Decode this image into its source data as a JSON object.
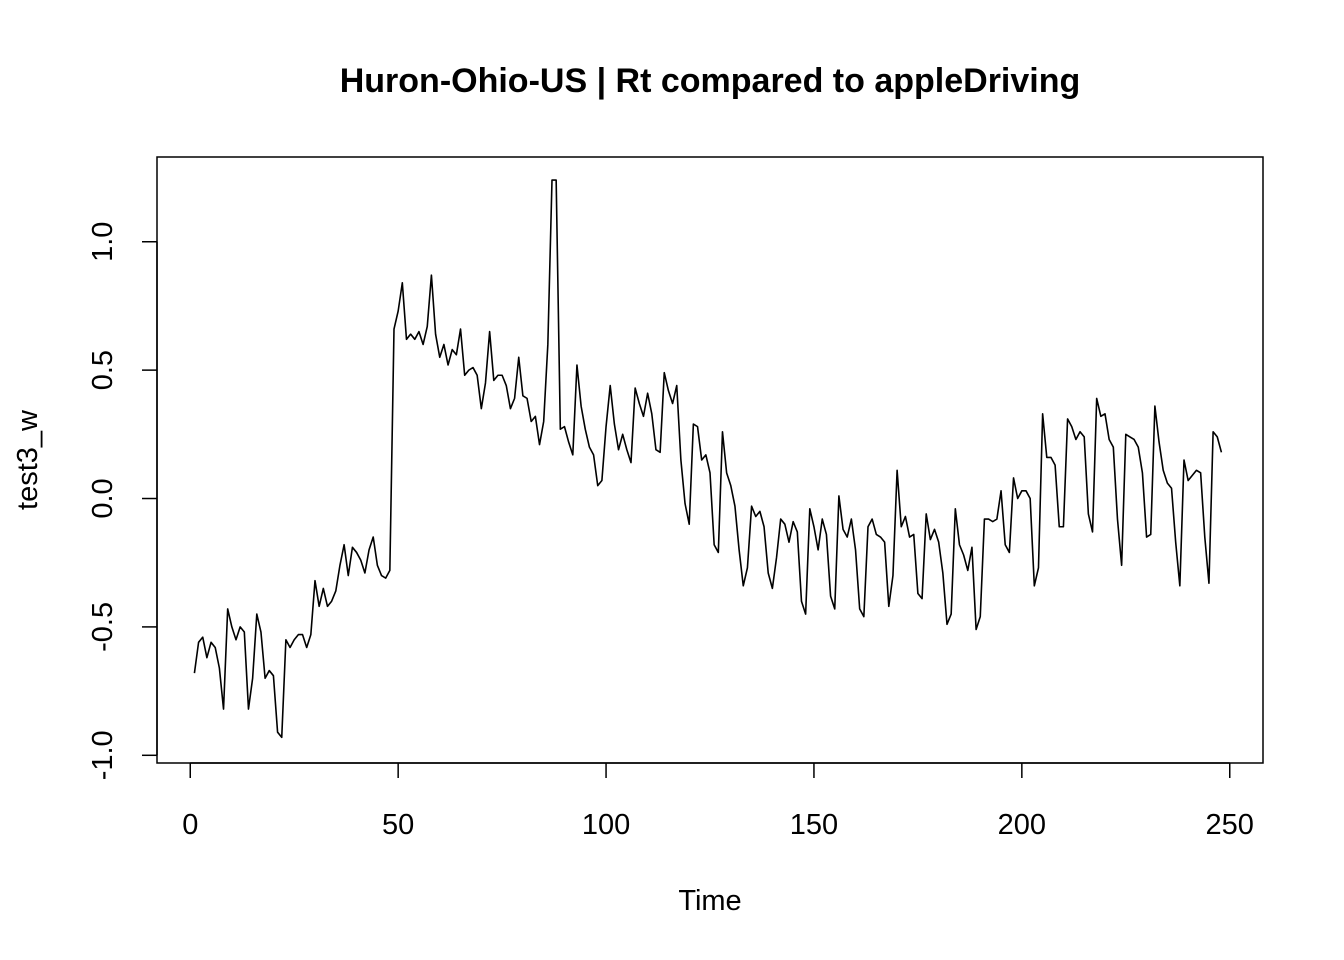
{
  "chart_data": {
    "type": "line",
    "title": "Huron-Ohio-US | Rt compared to appleDriving",
    "xlabel": "Time",
    "ylabel": "test3_w",
    "xlim": [
      -8,
      258
    ],
    "ylim": [
      -1.03,
      1.33
    ],
    "x_ticks": [
      0,
      50,
      100,
      150,
      200,
      250
    ],
    "y_ticks": [
      -1.0,
      -0.5,
      0.0,
      0.5,
      1.0
    ],
    "x_tick_labels": [
      "0",
      "50",
      "100",
      "150",
      "200",
      "250"
    ],
    "y_tick_labels": [
      "-1.0",
      "-0.5",
      "0.0",
      "0.5",
      "1.0"
    ],
    "grid": false,
    "series": [
      {
        "color": "#000000",
        "x_start": 1,
        "values": [
          -0.68,
          -0.56,
          -0.54,
          -0.62,
          -0.56,
          -0.58,
          -0.66,
          -0.82,
          -0.43,
          -0.5,
          -0.55,
          -0.5,
          -0.52,
          -0.82,
          -0.7,
          -0.45,
          -0.52,
          -0.7,
          -0.67,
          -0.69,
          -0.91,
          -0.93,
          -0.55,
          -0.58,
          -0.55,
          -0.53,
          -0.53,
          -0.58,
          -0.53,
          -0.32,
          -0.42,
          -0.35,
          -0.42,
          -0.4,
          -0.36,
          -0.26,
          -0.18,
          -0.3,
          -0.19,
          -0.21,
          -0.24,
          -0.29,
          -0.2,
          -0.15,
          -0.26,
          -0.3,
          -0.31,
          -0.28,
          0.66,
          0.73,
          0.84,
          0.62,
          0.64,
          0.62,
          0.65,
          0.6,
          0.67,
          0.87,
          0.64,
          0.55,
          0.6,
          0.52,
          0.58,
          0.56,
          0.66,
          0.48,
          0.5,
          0.51,
          0.48,
          0.35,
          0.45,
          0.65,
          0.46,
          0.48,
          0.48,
          0.44,
          0.35,
          0.39,
          0.55,
          0.4,
          0.39,
          0.3,
          0.32,
          0.21,
          0.3,
          0.6,
          1.24,
          1.24,
          0.27,
          0.28,
          0.22,
          0.17,
          0.52,
          0.36,
          0.27,
          0.2,
          0.17,
          0.05,
          0.07,
          0.28,
          0.44,
          0.29,
          0.19,
          0.25,
          0.19,
          0.14,
          0.43,
          0.37,
          0.32,
          0.41,
          0.33,
          0.19,
          0.18,
          0.49,
          0.42,
          0.37,
          0.44,
          0.15,
          -0.02,
          -0.1,
          0.29,
          0.28,
          0.15,
          0.17,
          0.1,
          -0.18,
          -0.21,
          0.26,
          0.1,
          0.05,
          -0.03,
          -0.2,
          -0.34,
          -0.27,
          -0.03,
          -0.07,
          -0.05,
          -0.11,
          -0.29,
          -0.35,
          -0.23,
          -0.08,
          -0.1,
          -0.17,
          -0.09,
          -0.13,
          -0.4,
          -0.45,
          -0.04,
          -0.11,
          -0.2,
          -0.08,
          -0.14,
          -0.38,
          -0.43,
          0.01,
          -0.12,
          -0.15,
          -0.08,
          -0.2,
          -0.43,
          -0.46,
          -0.11,
          -0.08,
          -0.14,
          -0.15,
          -0.17,
          -0.42,
          -0.3,
          0.11,
          -0.11,
          -0.07,
          -0.15,
          -0.14,
          -0.37,
          -0.39,
          -0.06,
          -0.16,
          -0.12,
          -0.17,
          -0.29,
          -0.49,
          -0.45,
          -0.04,
          -0.18,
          -0.22,
          -0.28,
          -0.19,
          -0.51,
          -0.46,
          -0.08,
          -0.08,
          -0.09,
          -0.08,
          0.03,
          -0.18,
          -0.21,
          0.08,
          0.0,
          0.03,
          0.03,
          0.0,
          -0.34,
          -0.27,
          0.33,
          0.16,
          0.16,
          0.13,
          -0.11,
          -0.11,
          0.31,
          0.28,
          0.23,
          0.26,
          0.24,
          -0.06,
          -0.13,
          0.39,
          0.32,
          0.33,
          0.23,
          0.2,
          -0.08,
          -0.26,
          0.25,
          0.24,
          0.23,
          0.2,
          0.1,
          -0.15,
          -0.14,
          0.36,
          0.22,
          0.11,
          0.06,
          0.04,
          -0.17,
          -0.34,
          0.15,
          0.07,
          0.09,
          0.11,
          0.1,
          -0.15,
          -0.33,
          0.26,
          0.24,
          0.18
        ]
      }
    ]
  }
}
